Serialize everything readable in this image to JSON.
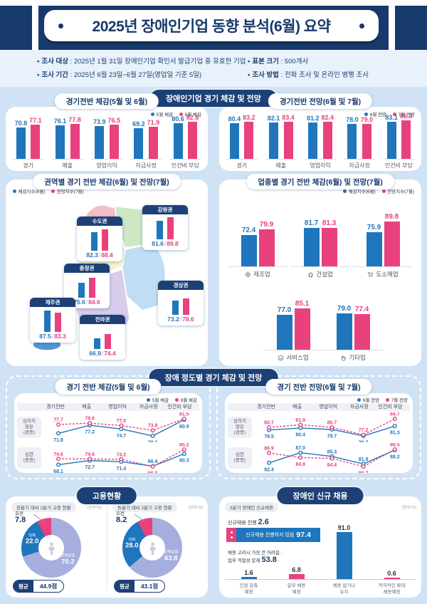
{
  "meta": {
    "colors": {
      "navy": "#1d4076",
      "blue": "#1f76bc",
      "pink": "#e8417e",
      "lavender": "#a6aedd",
      "bg": "#cfe3f4",
      "strip": "#e9f1fb"
    }
  },
  "header": {
    "title": "2025년 장애인기업 동향 분석(6월) 요약"
  },
  "survey": {
    "items": [
      {
        "label": "조사 대상",
        "value": "2025년 1월 31일 장애인기업 확인서 발급기업 중 유효한 기업"
      },
      {
        "label": "조사 기간",
        "value": "2025년 6월 23일~6월 27일(영업일 기준 5일)"
      },
      {
        "label": "표본 크기",
        "value": "500개사"
      },
      {
        "label": "조사 방법",
        "value": "전화 조사 및 온라인 병행 조사"
      }
    ]
  },
  "sections": {
    "charts_pill": "장애인기업 경기 체감 및 전망",
    "severity_pill": "장애 정도별 경기 체감 및 전망",
    "employment_pill": "고용현황",
    "newhire_pill": "장애인 신규 채용"
  },
  "chart_data": [
    {
      "id": "overall-feel",
      "type": "bar",
      "title": "경기전반 체감(5월 및 6월)",
      "legend": [
        {
          "label": "5월 체감",
          "color": "#1f76bc"
        },
        {
          "label": "6월 체감",
          "color": "#e8417e"
        }
      ],
      "categories": [
        "경기",
        "매출",
        "영업이익",
        "자금사정",
        "인건비 부담"
      ],
      "series": [
        {
          "name": "5월 체감",
          "color": "#1f76bc",
          "values": [
            70.8,
            76.1,
            73.9,
            69.2,
            80.6
          ]
        },
        {
          "name": "6월 체감",
          "color": "#e8417e",
          "values": [
            77.1,
            77.8,
            76.5,
            71.9,
            82.6
          ]
        }
      ]
    },
    {
      "id": "overall-outlook",
      "type": "bar",
      "title": "경기전반 전망(6월 및 7월)",
      "legend": [
        {
          "label": "6월 전망",
          "color": "#1f76bc"
        },
        {
          "label": "7월 전망",
          "color": "#e8417e"
        }
      ],
      "categories": [
        "경기",
        "매출",
        "영업이익",
        "자금사정",
        "인건비 부담"
      ],
      "series": [
        {
          "name": "6월 전망",
          "color": "#1f76bc",
          "values": [
            80.4,
            82.1,
            81.2,
            78.0,
            83.1
          ]
        },
        {
          "name": "7월 전망",
          "color": "#e8417e",
          "values": [
            83.2,
            83.4,
            82.4,
            79.0,
            86.3
          ]
        }
      ]
    },
    {
      "id": "regional",
      "type": "map-callouts",
      "title": "권역별 경기 전반 체감(6월) 및 전망(7월)",
      "legend": [
        {
          "label": "체감지수(6월)",
          "color": "#1f76bc"
        },
        {
          "label": "전망지수(7월)",
          "color": "#e8417e"
        }
      ],
      "regions": [
        {
          "name": "수도권",
          "feel": 82.3,
          "outlook": 88.4
        },
        {
          "name": "강원권",
          "feel": 81.6,
          "outlook": 89.8
        },
        {
          "name": "충청권",
          "feel": 75.6,
          "outlook": 84.6
        },
        {
          "name": "경상권",
          "feel": 73.2,
          "outlook": 78.6
        },
        {
          "name": "제주권",
          "feel": 87.5,
          "outlook": 83.3
        },
        {
          "name": "전라권",
          "feel": 66.9,
          "outlook": 74.4
        }
      ]
    },
    {
      "id": "industry",
      "type": "bar",
      "title": "업종별 경기 전반 체감(6월) 및 전망(7월)",
      "legend": [
        {
          "label": "체감지수(6월)",
          "color": "#1f76bc"
        },
        {
          "label": "전망지수(7월)",
          "color": "#e8417e"
        }
      ],
      "categories": [
        "제조업",
        "건설업",
        "도소매업",
        "서비스업",
        "기타업"
      ],
      "icons": [
        "gear-icon",
        "house-icon",
        "cart-icon",
        "smile-icon",
        "hand-icon"
      ],
      "series": [
        {
          "name": "체감지수(6월)",
          "color": "#1f76bc",
          "values": [
            72.4,
            81.7,
            75.9,
            77.0,
            79.0
          ]
        },
        {
          "name": "전망지수(7월)",
          "color": "#e8417e",
          "values": [
            79.9,
            81.3,
            89.8,
            85.1,
            77.4
          ]
        }
      ]
    },
    {
      "id": "severity-feel",
      "type": "line",
      "title": "경기 전반 체감(5월 및 6월)",
      "legend": [
        {
          "label": "5월 체감",
          "color": "#1f76bc"
        },
        {
          "label": "6월 체감",
          "color": "#e8417e"
        }
      ],
      "categories": [
        "경기전반",
        "매출",
        "영업이익",
        "자금사정",
        "인건비 부담"
      ],
      "rows": [
        {
          "label": [
            "심하지",
            "않은",
            "(경증)"
          ],
          "series": [
            {
              "name": "5월 체감",
              "color": "#1f76bc",
              "values": [
                71.8,
                77.2,
                74.7,
                70.1,
                80.9
              ]
            },
            {
              "name": "6월 체감",
              "color": "#e8417e",
              "values": [
                77.7,
                78.6,
                77.0,
                73.8,
                81.5
              ]
            }
          ]
        },
        {
          "label": [
            "심한",
            "(중증)"
          ],
          "series": [
            {
              "name": "5월 체감",
              "color": "#1f76bc",
              "values": [
                68.1,
                72.7,
                71.4,
                66.4,
                80.3
              ]
            },
            {
              "name": "6월 체감",
              "color": "#e8417e",
              "values": [
                74.6,
                74.6,
                74.2,
                66.0,
                85.2
              ]
            }
          ]
        }
      ]
    },
    {
      "id": "severity-outlook",
      "type": "line",
      "title": "경기 전반 전망(6월 및 7월)",
      "legend": [
        {
          "label": "6월 전망",
          "color": "#1f76bc"
        },
        {
          "label": "7월 전망",
          "color": "#e8417e"
        }
      ],
      "categories": [
        "경기전반",
        "매출",
        "영업이익",
        "자금사정",
        "인건비 부담"
      ],
      "rows": [
        {
          "label": [
            "심하지",
            "않은",
            "(경증)"
          ],
          "series": [
            {
              "name": "6월 전망",
              "color": "#1f76bc",
              "values": [
                79.5,
                80.4,
                79.7,
                76.7,
                81.3
              ]
            },
            {
              "name": "7월 전망",
              "color": "#e8417e",
              "values": [
                80.7,
                81.9,
                80.7,
                77.2,
                84.7
              ]
            }
          ]
        },
        {
          "label": [
            "심한",
            "(중증)"
          ],
          "series": [
            {
              "name": "6월 전망",
              "color": "#1f76bc",
              "values": [
                82.4,
                87.0,
                85.3,
                81.9,
                88.2
              ]
            },
            {
              "name": "7월 전망",
              "color": "#e8417e",
              "values": [
                86.9,
                84.8,
                84.4,
                80.7,
                88.5
              ]
            }
          ]
        }
      ]
    },
    {
      "id": "employment-prev",
      "type": "pie",
      "title": "전분기 대비 2분기 고용 현황",
      "unit": "(단위:%)",
      "slices": [
        {
          "label": "호전",
          "value": 7.8,
          "color": "#e8417e"
        },
        {
          "label": "변화없음",
          "value": 70.2,
          "color": "#a6aedd"
        },
        {
          "label": "악화",
          "value": 22.0,
          "color": "#1f76bc"
        }
      ],
      "average_label": "평균",
      "average_value": "44.9점"
    },
    {
      "id": "employment-same",
      "type": "pie",
      "title": "동분기 대비 2분기 고용 현황",
      "unit": "(단위:%)",
      "slices": [
        {
          "label": "호전",
          "value": 8.2,
          "color": "#e8417e"
        },
        {
          "label": "변화없음",
          "value": 63.8,
          "color": "#a6aedd"
        },
        {
          "label": "악화",
          "value": 28.0,
          "color": "#1f76bc"
        }
      ],
      "average_label": "평균",
      "average_value": "43.1점"
    },
    {
      "id": "new-hire",
      "type": "bar",
      "title": "3분기 장애인 신규채용",
      "unit": "(단위:%)",
      "progress_label": "신규채용 진행",
      "progress_value": "2.6",
      "notprogress_label": "신규채용 진행하지 않음",
      "notprogress_value": "97.4",
      "difficulty_label": "채용 고려시 가장 큰 어려움 :",
      "difficulty_item": "업무 적합성 문제",
      "difficulty_value": "53.8",
      "items": [
        {
          "label": [
            "인원 감축",
            "예정"
          ],
          "value": 1.6,
          "color": "#1f76bc"
        },
        {
          "label": [
            "일부 채용",
            "예정"
          ],
          "value": 6.8,
          "color": "#e8417e"
        },
        {
          "label": [
            "채용 없거나",
            "유지"
          ],
          "value": 91.0,
          "color": "#1f76bc"
        },
        {
          "label": [
            "적극적인 확대",
            "채용예정"
          ],
          "value": 0.6,
          "color": "#e8417e"
        }
      ]
    }
  ]
}
